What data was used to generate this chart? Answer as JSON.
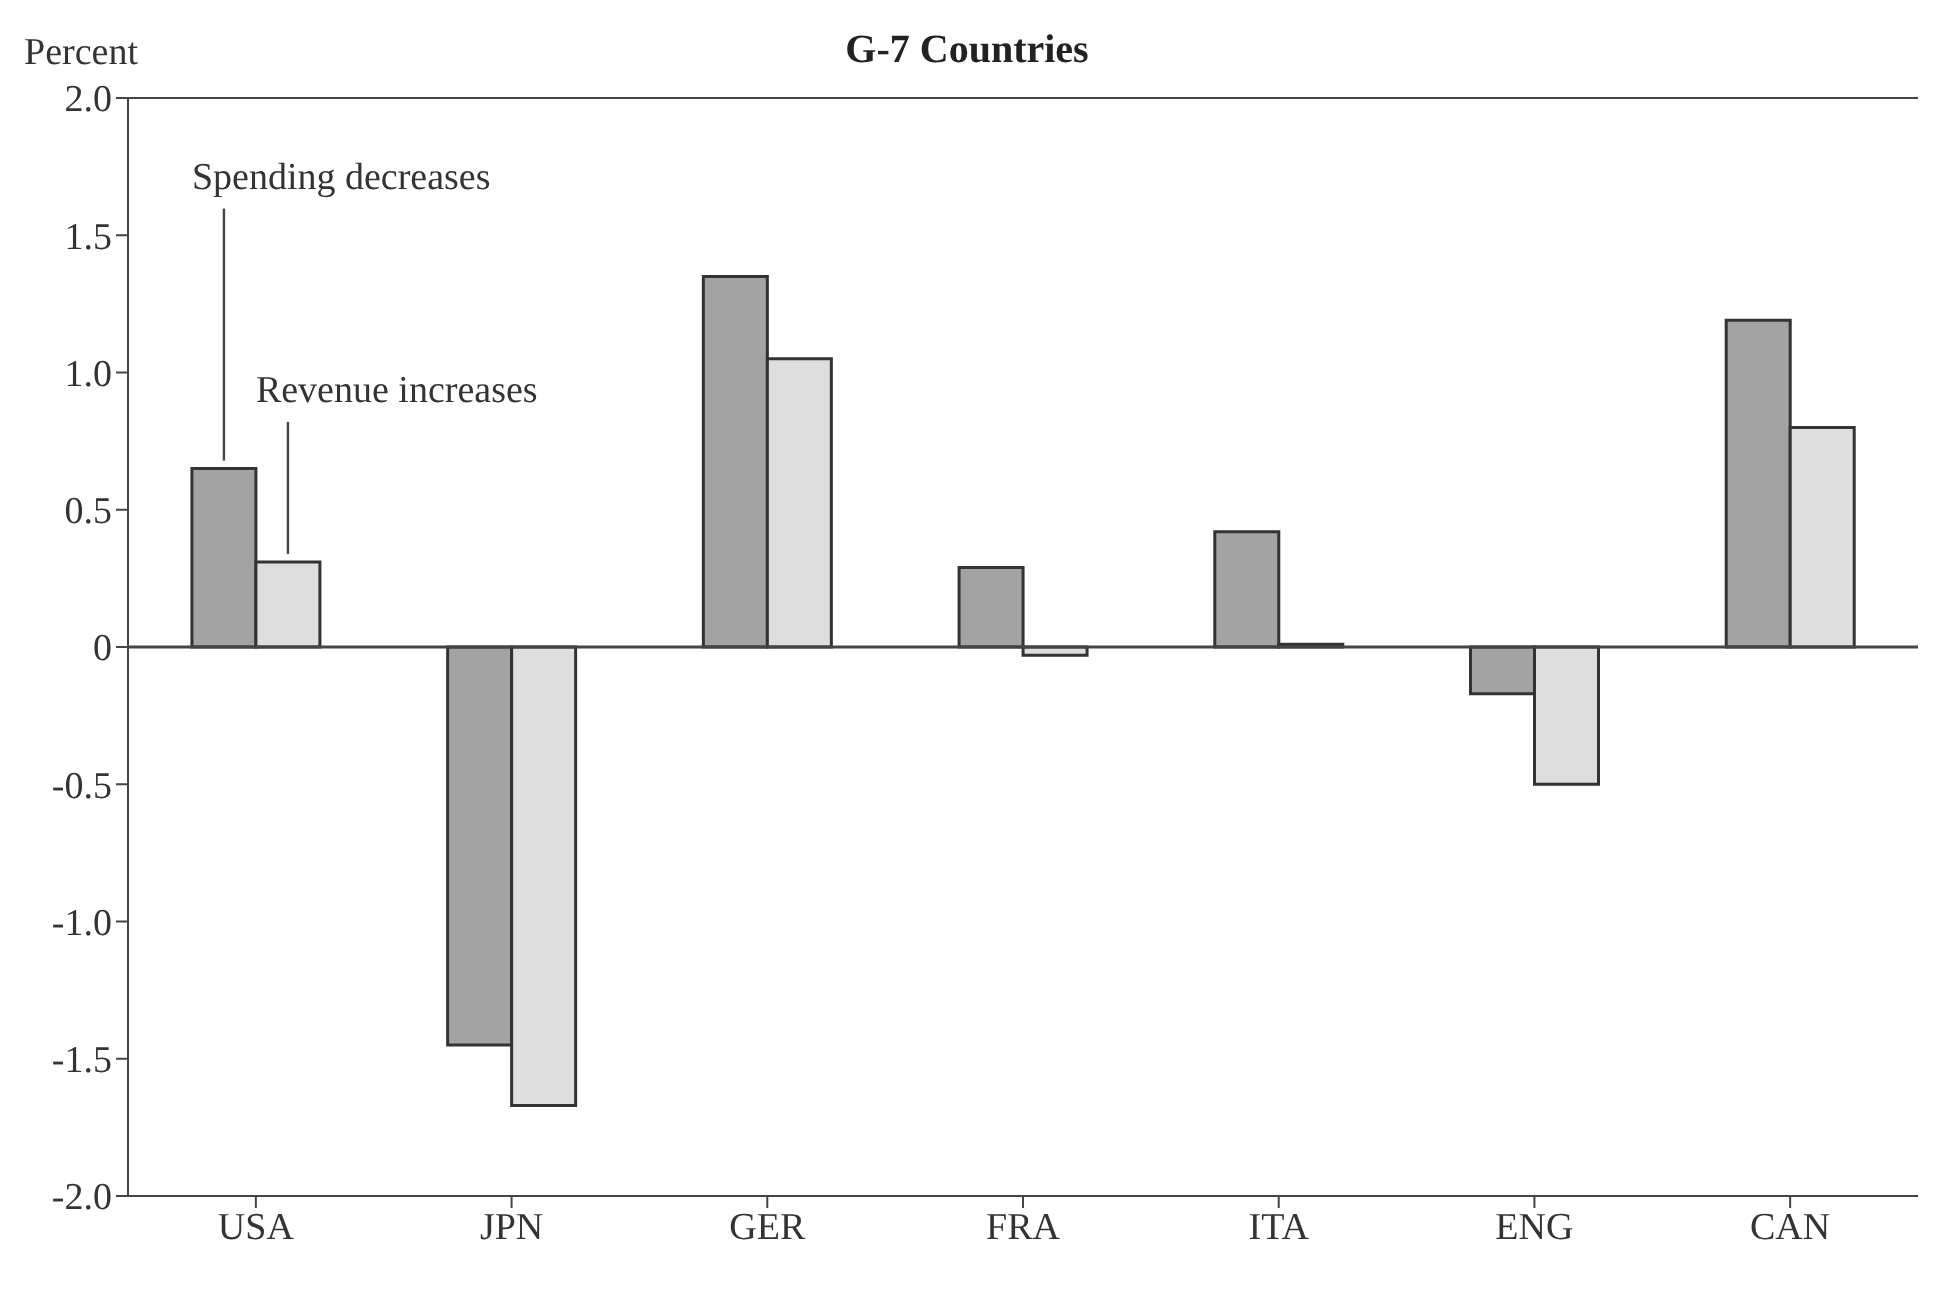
{
  "chart_data": {
    "type": "bar",
    "title": "G-7 Countries",
    "ylabel": "Percent",
    "categories": [
      "USA",
      "JPN",
      "GER",
      "FRA",
      "ITA",
      "ENG",
      "CAN"
    ],
    "series": [
      {
        "name": "Spending decreases",
        "color": "#a3a3a3",
        "values": [
          0.65,
          -1.45,
          1.35,
          0.29,
          0.42,
          -0.17,
          1.19
        ]
      },
      {
        "name": "Revenue increases",
        "color": "#dedede",
        "values": [
          0.31,
          -1.67,
          1.05,
          -0.03,
          0.01,
          -0.5,
          0.8
        ]
      }
    ],
    "ylim": [
      -2.0,
      2.0
    ],
    "yticks": [
      {
        "value": -2,
        "label": "-2.0"
      },
      {
        "value": -1.5,
        "label": "-1.5"
      },
      {
        "value": -1,
        "label": "-1.0"
      },
      {
        "value": -0.5,
        "label": "-0.5"
      },
      0,
      {
        "value": 0.5,
        "label": "0.5"
      },
      {
        "value": 1,
        "label": "1.0"
      },
      {
        "value": 1.5,
        "label": "1.5"
      },
      {
        "value": 2,
        "label": "2.0"
      }
    ],
    "legend": false
  }
}
